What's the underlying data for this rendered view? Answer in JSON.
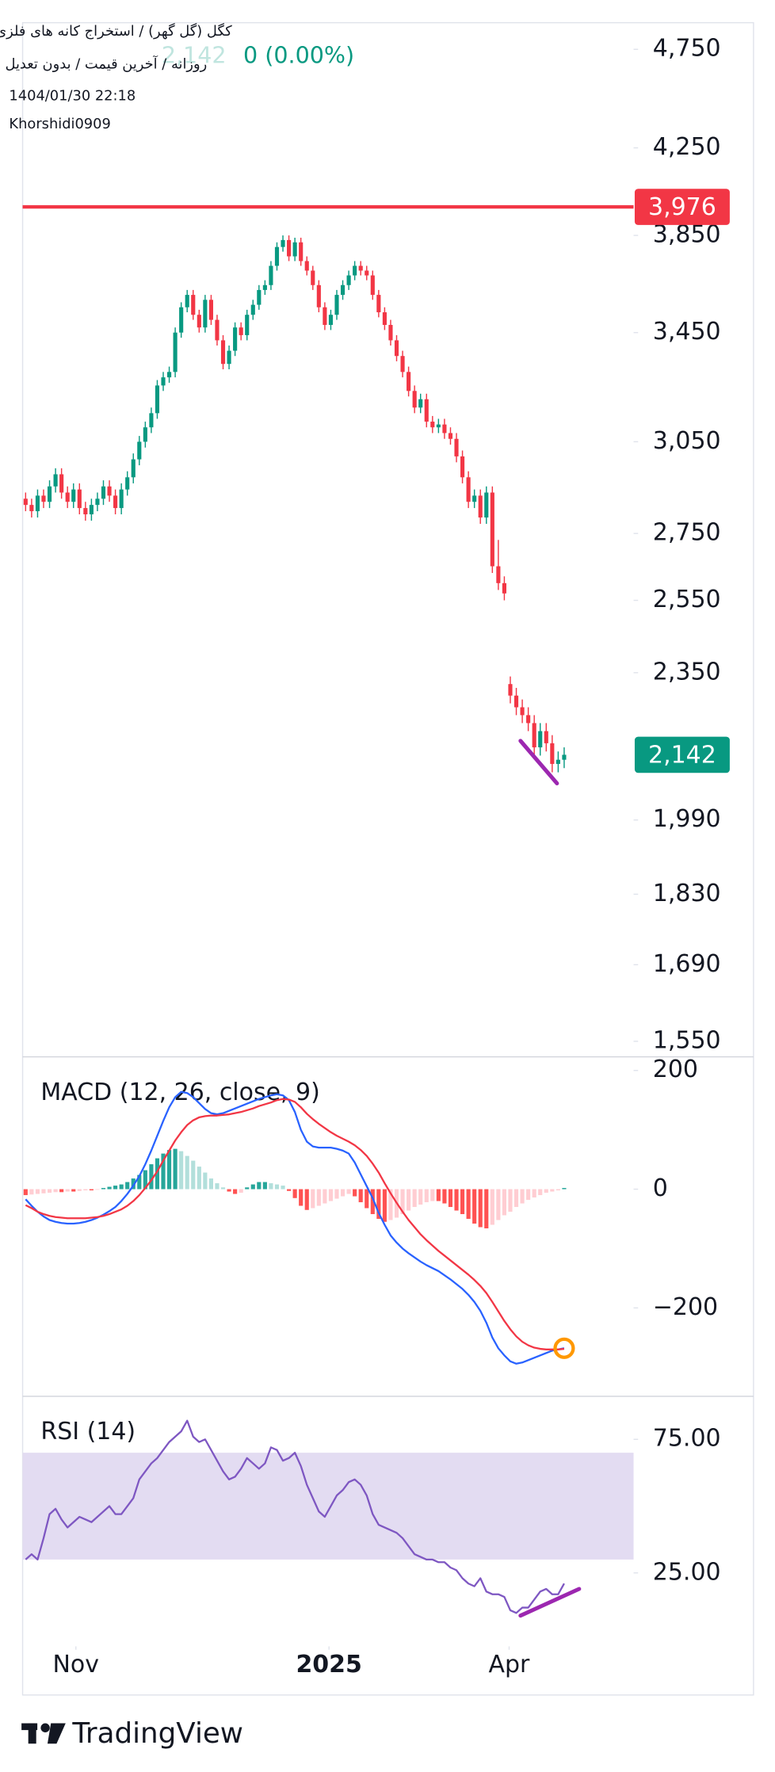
{
  "header": {
    "symbol": "کگل (گل گهر) / استخراج کانه های فلزی",
    "settings": "روزانه / آخرین قیمت / بدون تعدیل",
    "ghost_price": "2,142",
    "change": "0 (0.00%)",
    "datetime": "1404/01/30 22:18",
    "author": "Khorshidi0909"
  },
  "brand": "TradingView",
  "chart_data": [
    {
      "type": "candlestick",
      "log": true,
      "ylim": [
        1525,
        4895
      ],
      "xlim": [
        -0.5,
        101.6
      ],
      "up_color": "#089981",
      "down_color": "#f23645",
      "yticks": [
        {
          "value": 4750,
          "label": "4,750"
        },
        {
          "value": 4250,
          "label": "4,250"
        },
        {
          "value": 3850,
          "label": "3,850"
        },
        {
          "value": 3450,
          "label": "3,450"
        },
        {
          "value": 3050,
          "label": "3,050"
        },
        {
          "value": 2750,
          "label": "2,750"
        },
        {
          "value": 2550,
          "label": "2,550"
        },
        {
          "value": 2350,
          "label": "2,350"
        },
        {
          "value": 1990,
          "label": "1,990"
        },
        {
          "value": 1830,
          "label": "1,830"
        },
        {
          "value": 1690,
          "label": "1,690"
        },
        {
          "value": 1550,
          "label": "1,550"
        }
      ],
      "open": [
        2860,
        2840,
        2820,
        2870,
        2850,
        2900,
        2940,
        2880,
        2850,
        2890,
        2830,
        2810,
        2840,
        2860,
        2900,
        2870,
        2830,
        2890,
        2930,
        2990,
        3050,
        3100,
        3150,
        3250,
        3280,
        3300,
        3450,
        3550,
        3600,
        3520,
        3470,
        3580,
        3500,
        3420,
        3330,
        3380,
        3470,
        3440,
        3520,
        3560,
        3620,
        3640,
        3720,
        3800,
        3830,
        3760,
        3820,
        3740,
        3700,
        3640,
        3550,
        3480,
        3520,
        3600,
        3640,
        3680,
        3720,
        3700,
        3680,
        3600,
        3530,
        3480,
        3420,
        3360,
        3300,
        3230,
        3170,
        3200,
        3120,
        3100,
        3110,
        3080,
        3060,
        3000,
        2930,
        2850,
        2870,
        2800,
        2880,
        2650,
        2600,
        2320,
        2290,
        2260,
        2240,
        2220,
        2160,
        2200,
        2170,
        2120,
        2130
      ],
      "high": [
        2880,
        2860,
        2890,
        2890,
        2920,
        2960,
        2960,
        2900,
        2910,
        2910,
        2850,
        2860,
        2880,
        2920,
        2920,
        2890,
        2910,
        2950,
        3010,
        3070,
        3120,
        3170,
        3270,
        3300,
        3320,
        3470,
        3570,
        3620,
        3620,
        3540,
        3600,
        3600,
        3520,
        3440,
        3400,
        3490,
        3490,
        3540,
        3580,
        3640,
        3660,
        3740,
        3820,
        3850,
        3850,
        3840,
        3840,
        3760,
        3720,
        3660,
        3570,
        3540,
        3620,
        3660,
        3700,
        3740,
        3740,
        3720,
        3700,
        3620,
        3550,
        3500,
        3440,
        3380,
        3320,
        3250,
        3220,
        3220,
        3140,
        3130,
        3130,
        3100,
        3080,
        3020,
        2950,
        2890,
        2890,
        2900,
        2900,
        2730,
        2620,
        2340,
        2310,
        2280,
        2260,
        2240,
        2220,
        2220,
        2190,
        2150,
        2160
      ],
      "low": [
        2820,
        2800,
        2800,
        2830,
        2830,
        2880,
        2860,
        2830,
        2830,
        2810,
        2790,
        2790,
        2820,
        2840,
        2850,
        2810,
        2810,
        2870,
        2910,
        2970,
        3030,
        3080,
        3130,
        3230,
        3260,
        3280,
        3430,
        3530,
        3500,
        3450,
        3450,
        3480,
        3400,
        3310,
        3310,
        3360,
        3420,
        3420,
        3500,
        3540,
        3600,
        3620,
        3700,
        3780,
        3740,
        3740,
        3720,
        3680,
        3620,
        3530,
        3460,
        3460,
        3500,
        3580,
        3620,
        3660,
        3680,
        3660,
        3580,
        3510,
        3460,
        3400,
        3340,
        3280,
        3210,
        3150,
        3150,
        3100,
        3080,
        3080,
        3060,
        3040,
        2980,
        2910,
        2830,
        2830,
        2780,
        2780,
        2630,
        2580,
        2550,
        2270,
        2240,
        2220,
        2200,
        2140,
        2140,
        2150,
        2100,
        2100,
        2110
      ],
      "close": [
        2840,
        2820,
        2870,
        2850,
        2900,
        2940,
        2880,
        2850,
        2890,
        2830,
        2810,
        2840,
        2860,
        2900,
        2870,
        2830,
        2890,
        2930,
        2990,
        3050,
        3100,
        3150,
        3250,
        3280,
        3300,
        3450,
        3550,
        3600,
        3520,
        3470,
        3580,
        3500,
        3420,
        3330,
        3380,
        3470,
        3440,
        3520,
        3560,
        3620,
        3640,
        3720,
        3800,
        3830,
        3760,
        3820,
        3740,
        3700,
        3640,
        3550,
        3480,
        3520,
        3600,
        3640,
        3680,
        3720,
        3700,
        3680,
        3600,
        3530,
        3480,
        3420,
        3360,
        3300,
        3230,
        3170,
        3200,
        3120,
        3100,
        3110,
        3080,
        3060,
        3000,
        2930,
        2850,
        2870,
        2800,
        2880,
        2650,
        2600,
        2570,
        2290,
        2260,
        2240,
        2220,
        2160,
        2200,
        2170,
        2120,
        2130,
        2142
      ],
      "hline": {
        "value": 3976,
        "label": "3,976"
      },
      "hline_color": "#f23645",
      "last_price": {
        "value": 2142,
        "label": "2,142"
      },
      "last_price_color": "#089981",
      "drawings": [
        {
          "x": [
            82.7,
            88.8
          ],
          "y": [
            2176,
            2074
          ],
          "color": "#9c27b0"
        }
      ]
    },
    {
      "type": "macd",
      "title": "MACD (12, 26, close, 9)",
      "ylim": [
        -347,
        221
      ],
      "xlim": [
        -0.5,
        101.6
      ],
      "yticks": [
        200,
        0,
        {
          "value": -200,
          "label": "−200"
        }
      ],
      "series": [
        {
          "color": "#2962ff",
          "values": [
            -17,
            -28,
            -38,
            -46,
            -52,
            -55,
            -57,
            -58,
            -58,
            -57,
            -55,
            -52,
            -48,
            -43,
            -37,
            -30,
            -20,
            -8,
            6,
            22,
            42,
            65,
            90,
            115,
            138,
            155,
            164,
            162,
            155,
            145,
            135,
            128,
            126,
            128,
            132,
            136,
            140,
            144,
            148,
            152,
            155,
            158,
            160,
            158,
            150,
            130,
            100,
            80,
            72,
            70,
            70,
            70,
            68,
            65,
            60,
            45,
            25,
            5,
            -15,
            -40,
            -60,
            -78,
            -90,
            -100,
            -108,
            -115,
            -122,
            -128,
            -133,
            -138,
            -145,
            -152,
            -160,
            -168,
            -178,
            -190,
            -205,
            -225,
            -250,
            -268,
            -280,
            -290,
            -294,
            -292,
            -288,
            -284,
            -280,
            -276,
            -272,
            -270,
            -268
          ]
        },
        {
          "color": "#f23645",
          "values": [
            -27,
            -32,
            -38,
            -42,
            -45,
            -47,
            -48,
            -49,
            -49,
            -49,
            -49,
            -48,
            -47,
            -45,
            -42,
            -38,
            -34,
            -28,
            -20,
            -10,
            2,
            15,
            30,
            48,
            65,
            82,
            96,
            108,
            116,
            121,
            123,
            124,
            124,
            125,
            126,
            128,
            130,
            133,
            136,
            140,
            143,
            146,
            150,
            152,
            151,
            147,
            138,
            127,
            118,
            110,
            103,
            96,
            90,
            85,
            80,
            74,
            66,
            56,
            43,
            28,
            10,
            -7,
            -23,
            -38,
            -52,
            -64,
            -76,
            -86,
            -95,
            -104,
            -112,
            -120,
            -128,
            -136,
            -144,
            -153,
            -163,
            -175,
            -190,
            -206,
            -222,
            -236,
            -248,
            -257,
            -263,
            -267,
            -269,
            -270,
            -270,
            -270,
            -269
          ]
        }
      ],
      "histogram": [
        -10,
        -9,
        -8,
        -7,
        -6,
        -5,
        -5,
        -4,
        -4,
        -3,
        -2,
        -2,
        -1,
        2,
        4,
        6,
        8,
        12,
        18,
        24,
        32,
        42,
        52,
        60,
        66,
        68,
        64,
        56,
        48,
        38,
        28,
        18,
        10,
        3,
        -4,
        -8,
        -6,
        3,
        8,
        12,
        12,
        10,
        8,
        6,
        -3,
        -15,
        -28,
        -35,
        -32,
        -28,
        -24,
        -20,
        -16,
        -12,
        -8,
        -12,
        -22,
        -32,
        -42,
        -50,
        -55,
        -52,
        -48,
        -42,
        -36,
        -30,
        -26,
        -22,
        -20,
        -20,
        -24,
        -30,
        -36,
        -42,
        -50,
        -58,
        -64,
        -66,
        -60,
        -52,
        -44,
        -38,
        -30,
        -24,
        -18,
        -14,
        -10,
        -6,
        -4,
        -2,
        2
      ],
      "histogram_colors": [
        "#26a69a",
        "#b2dfdb",
        "#ff5252",
        "#ffcdd2"
      ],
      "marker": {
        "x": 90,
        "y": -268,
        "color": "#ff9800"
      }
    },
    {
      "type": "line",
      "title": "RSI (14)",
      "ylim": [
        -2.5,
        90.7
      ],
      "xlim": [
        -0.5,
        101.6
      ],
      "yticks": [
        {
          "value": 75,
          "label": "75.00"
        },
        {
          "value": 25,
          "label": "25.00"
        }
      ],
      "band": [
        30,
        70
      ],
      "band_color": "#e3dcf2",
      "color": "#7e57c2",
      "values": [
        30,
        32,
        30,
        38,
        47,
        49,
        45,
        42,
        44,
        46,
        45,
        44,
        46,
        48,
        50,
        47,
        47,
        50,
        53,
        60,
        63,
        66,
        68,
        71,
        74,
        76,
        78,
        82,
        76,
        74,
        75,
        71,
        67,
        63,
        60,
        61,
        64,
        68,
        66,
        64,
        66,
        72,
        71,
        67,
        68,
        70,
        65,
        58,
        53,
        48,
        46,
        50,
        54,
        56,
        59,
        60,
        58,
        54,
        47,
        43,
        42,
        41,
        40,
        38,
        35,
        32,
        31,
        30,
        30,
        29,
        29,
        27,
        26,
        23,
        21,
        20,
        23,
        18,
        17,
        17,
        16,
        11,
        10,
        12,
        12,
        15,
        18,
        19,
        17,
        17,
        21
      ],
      "drawings": [
        {
          "x": [
            82.7,
            92.5
          ],
          "y": [
            9,
            19
          ],
          "color": "#9c27b0"
        }
      ],
      "xticks": [
        {
          "value": 8.4,
          "label": "Nov"
        },
        {
          "value": 50.7,
          "label": "2025",
          "bold": true
        },
        {
          "value": 80.8,
          "label": "Apr"
        }
      ]
    }
  ]
}
